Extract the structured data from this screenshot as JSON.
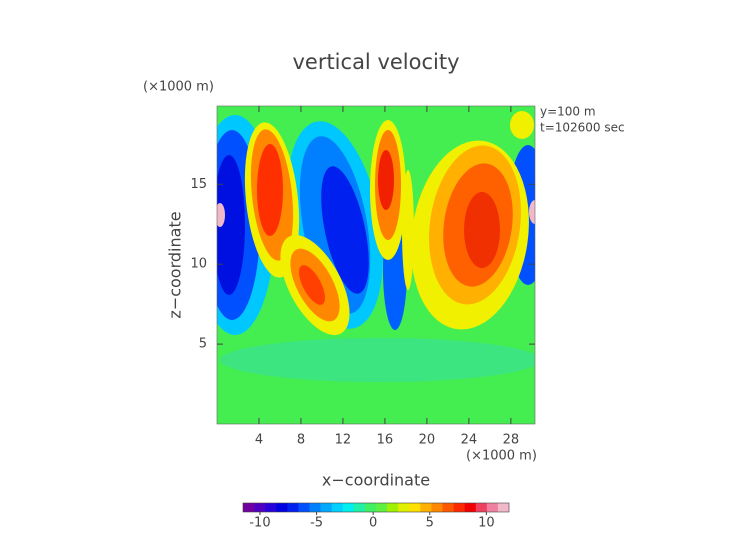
{
  "chart_data": {
    "type": "contour",
    "title": "vertical velocity",
    "y_unit": "(×1000 m)",
    "x_unit": "(×1000 m)",
    "annotations": [
      "y=100 m",
      "t=102600 sec"
    ],
    "xlabel": "x−coordinate",
    "ylabel": "z−coordinate",
    "xlim": [
      0,
      30.3
    ],
    "ylim": [
      0,
      19.9
    ],
    "xticks": [
      4,
      8,
      12,
      16,
      20,
      24,
      28
    ],
    "yticks": [
      5,
      10,
      15
    ],
    "colorbar": {
      "lim": [
        -11.5,
        12
      ],
      "ticks": [
        -10,
        -5,
        0,
        5,
        10
      ],
      "colors": [
        "#7000a0",
        "#5000c0",
        "#2800d8",
        "#0000e0",
        "#0020f0",
        "#0050ff",
        "#0080ff",
        "#00a8ff",
        "#00d0ff",
        "#00f0f0",
        "#20f0a8",
        "#40f060",
        "#60f040",
        "#a0f000",
        "#e0f000",
        "#ffe000",
        "#ffb000",
        "#ff8800",
        "#ff5800",
        "#ff2800",
        "#f00000",
        "#f04060",
        "#f080a0",
        "#f0b8c8"
      ]
    }
  }
}
